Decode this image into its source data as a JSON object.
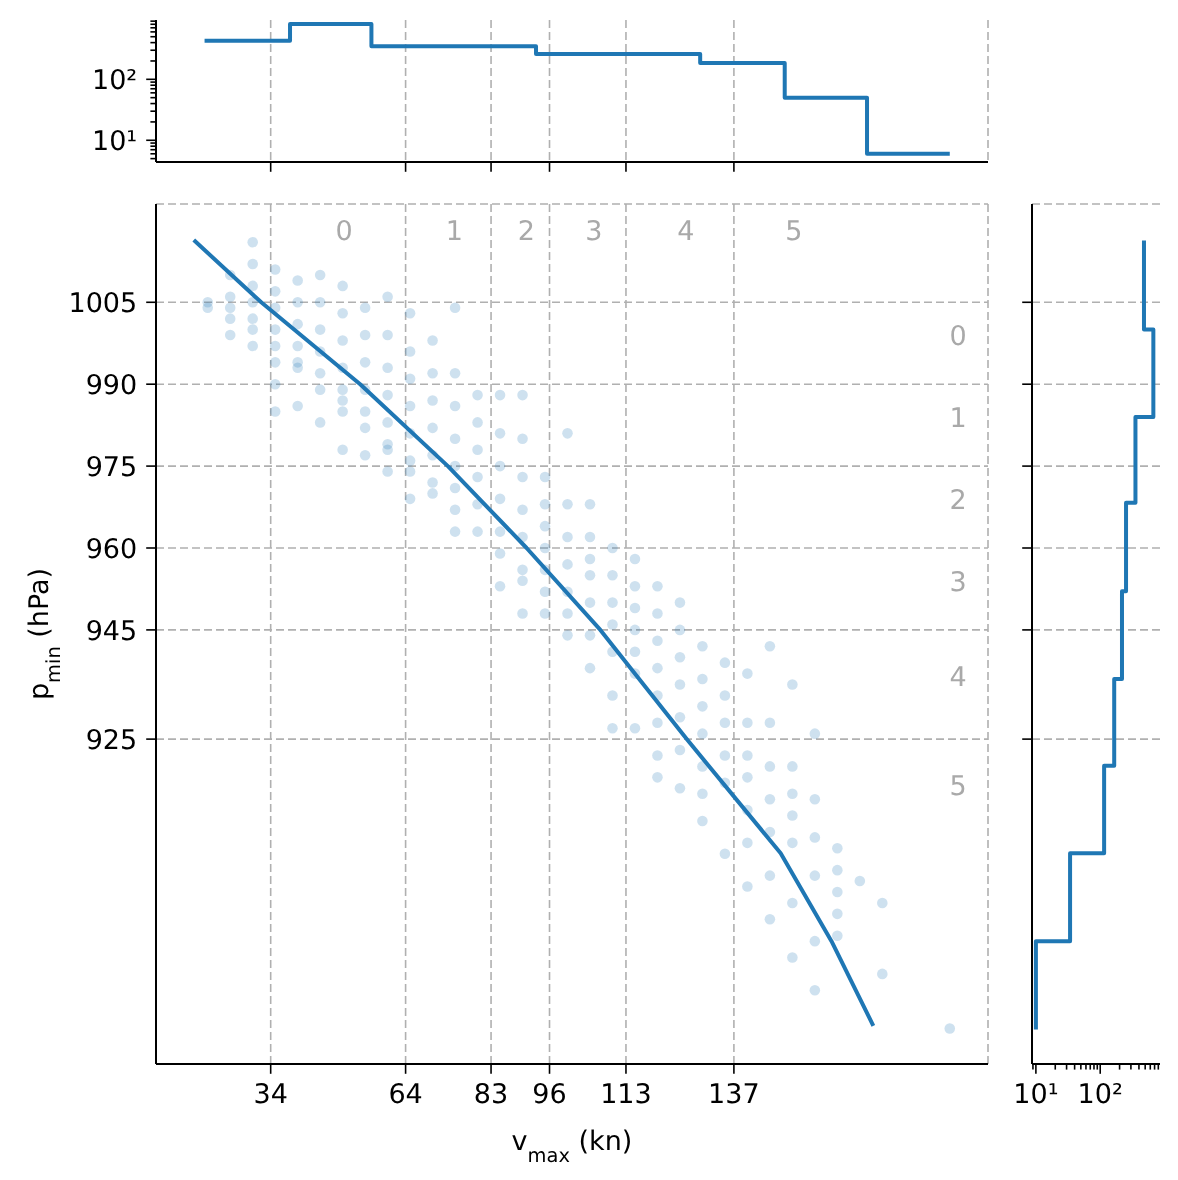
{
  "chart_data": [
    {
      "type": "histogram",
      "bins": [
        19.3,
        38.3,
        56.4,
        93,
        129.5,
        148.3,
        166.6,
        185
      ],
      "values": [
        430,
        810,
        350,
        260,
        185,
        50,
        6
      ],
      "color": "#1f77b4",
      "xlim": [
        8.5,
        193.5
      ],
      "xticks": [
        34,
        64,
        83,
        96,
        113,
        137
      ],
      "ylim": [
        4.4,
        940
      ],
      "yticks": [
        {
          "value": 5,
          "label": null
        },
        {
          "value": 6,
          "label": null
        },
        {
          "value": 7,
          "label": null
        },
        {
          "value": 8,
          "label": null
        },
        {
          "value": 9,
          "label": null
        },
        {
          "value": 10,
          "label": "10¹"
        },
        {
          "value": 20,
          "label": null
        },
        {
          "value": 30,
          "label": null
        },
        {
          "value": 40,
          "label": null
        },
        {
          "value": 50,
          "label": null
        },
        {
          "value": 60,
          "label": null
        },
        {
          "value": 70,
          "label": null
        },
        {
          "value": 80,
          "label": null
        },
        {
          "value": 90,
          "label": null
        },
        {
          "value": 100,
          "label": "10²"
        },
        {
          "value": 200,
          "label": null
        },
        {
          "value": 300,
          "label": null
        },
        {
          "value": 400,
          "label": null
        },
        {
          "value": 500,
          "label": null
        },
        {
          "value": 600,
          "label": null
        },
        {
          "value": 700,
          "label": null
        },
        {
          "value": 800,
          "label": null
        },
        {
          "value": 900,
          "label": null
        }
      ],
      "log": "y",
      "grid": "x",
      "tick_labels": "y"
    },
    {
      "type": "scatter",
      "xlabel": "v$_{max}$ (kn)",
      "ylabel": "p$_{min}$ (hPa)",
      "xlim": [
        8.5,
        193.5
      ],
      "xticks": [
        34,
        64,
        83,
        96,
        113,
        137
      ],
      "ylim": [
        865.5,
        1023
      ],
      "yticks": [
        1005,
        990,
        975,
        960,
        945,
        925
      ],
      "grid": true,
      "series": [
        {
          "type": "scatter",
          "color": "#1f77b4",
          "marker": "circle",
          "x": [
            20,
            20,
            25,
            25,
            25,
            25,
            25,
            30,
            30,
            30,
            30,
            30,
            30,
            30,
            35,
            35,
            35,
            35,
            35,
            35,
            35,
            35,
            40,
            40,
            40,
            40,
            40,
            40,
            40,
            45,
            45,
            45,
            45,
            45,
            45,
            45,
            50,
            50,
            50,
            50,
            50,
            50,
            50,
            50,
            55,
            55,
            55,
            55,
            55,
            55,
            55,
            60,
            60,
            60,
            60,
            60,
            60,
            60,
            60,
            65,
            65,
            65,
            65,
            65,
            65,
            65,
            65,
            70,
            70,
            70,
            70,
            70,
            70,
            70,
            75,
            75,
            75,
            75,
            75,
            75,
            75,
            75,
            80,
            80,
            80,
            80,
            80,
            80,
            85,
            85,
            85,
            85,
            85,
            85,
            85,
            90,
            90,
            90,
            90,
            90,
            90,
            90,
            90,
            95,
            95,
            95,
            95,
            95,
            95,
            95,
            100,
            100,
            100,
            100,
            100,
            100,
            100,
            105,
            105,
            105,
            105,
            105,
            105,
            105,
            110,
            110,
            110,
            110,
            110,
            110,
            110,
            115,
            115,
            115,
            115,
            115,
            115,
            115,
            120,
            120,
            120,
            120,
            120,
            120,
            120,
            120,
            125,
            125,
            125,
            125,
            125,
            125,
            125,
            130,
            130,
            130,
            130,
            130,
            130,
            130,
            135,
            135,
            135,
            135,
            135,
            135,
            140,
            140,
            140,
            140,
            140,
            140,
            140,
            145,
            145,
            145,
            145,
            145,
            145,
            145,
            150,
            150,
            150,
            150,
            150,
            150,
            150,
            155,
            155,
            155,
            155,
            155,
            155,
            160,
            160,
            160,
            160,
            160,
            165,
            170,
            170,
            185
          ],
          "values": [
            1005,
            1004,
            1010,
            1006,
            1004,
            1002,
            999,
            1016,
            1012,
            1008,
            1005,
            1002,
            1000,
            997,
            1011,
            1007,
            1004,
            1000,
            997,
            994,
            990,
            985,
            1009,
            1005,
            1001,
            997,
            994,
            993,
            986,
            1010,
            1005,
            1000,
            996,
            992,
            989,
            983,
            1008,
            1003,
            998,
            993,
            989,
            987,
            985,
            978,
            1004,
            999,
            994,
            989,
            985,
            982,
            977,
            1006,
            999,
            993,
            988,
            983,
            979,
            978,
            974,
            1003,
            996,
            991,
            986,
            981,
            976,
            974,
            969,
            998,
            992,
            987,
            982,
            977,
            972,
            970,
            1004,
            992,
            986,
            980,
            975,
            971,
            967,
            963,
            988,
            983,
            978,
            973,
            968,
            963,
            988,
            981,
            975,
            969,
            963,
            959,
            953,
            988,
            980,
            973,
            967,
            962,
            956,
            954,
            948,
            973,
            968,
            964,
            960,
            956,
            952,
            948,
            981,
            968,
            962,
            957,
            952,
            948,
            944,
            968,
            962,
            958,
            955,
            950,
            944,
            938,
            960,
            955,
            950,
            946,
            941,
            933,
            927,
            958,
            953,
            949,
            945,
            941,
            937,
            927,
            953,
            948,
            943,
            938,
            933,
            928,
            922,
            918,
            950,
            945,
            940,
            935,
            929,
            923,
            916,
            942,
            936,
            931,
            926,
            920,
            915,
            910,
            939,
            933,
            928,
            922,
            917,
            904,
            937,
            928,
            922,
            918,
            912,
            906,
            898,
            942,
            928,
            920,
            914,
            908,
            900,
            892,
            935,
            920,
            915,
            911,
            906,
            895,
            885,
            926,
            914,
            907,
            900,
            888,
            879,
            905,
            901,
            897,
            893,
            889,
            899,
            895,
            882,
            872
          ]
        },
        {
          "type": "line",
          "color": "#1f77b4",
          "x": [
            16.9,
            31.9,
            53.9,
            73.4,
            90.9,
            107.3,
            126.5,
            147.4,
            158.7,
            168
          ],
          "values": [
            1016.4,
            1005,
            990,
            975,
            960,
            945,
            925,
            904.1,
            888,
            872.5
          ]
        }
      ],
      "annotations": [
        "0",
        "1",
        "2",
        "3",
        "4",
        "5",
        "0",
        "1",
        "2",
        "3",
        "4",
        "5"
      ]
    },
    {
      "type": "histogram",
      "orientation": "horizontal",
      "bins": [
        871.8,
        888,
        904.1,
        920.1,
        936,
        952.1,
        968.3,
        984,
        1000,
        1016.3
      ],
      "values": [
        10,
        34,
        115,
        165,
        218,
        252,
        353,
        670,
        479
      ],
      "color": "#1f77b4",
      "xlim": [
        8.7,
        850
      ],
      "xticks": [
        {
          "value": 9,
          "label": null
        },
        {
          "value": 10,
          "label": "10¹"
        },
        {
          "value": 20,
          "label": null
        },
        {
          "value": 30,
          "label": null
        },
        {
          "value": 40,
          "label": null
        },
        {
          "value": 50,
          "label": null
        },
        {
          "value": 60,
          "label": null
        },
        {
          "value": 70,
          "label": null
        },
        {
          "value": 80,
          "label": null
        },
        {
          "value": 90,
          "label": null
        },
        {
          "value": 100,
          "label": "10²"
        },
        {
          "value": 200,
          "label": null
        },
        {
          "value": 300,
          "label": null
        },
        {
          "value": 400,
          "label": null
        },
        {
          "value": 500,
          "label": null
        },
        {
          "value": 600,
          "label": null
        },
        {
          "value": 700,
          "label": null
        },
        {
          "value": 800,
          "label": null
        }
      ],
      "ylim": [
        865.5,
        1023
      ],
      "yticks": [
        1005,
        990,
        975,
        960,
        945,
        925
      ],
      "log": "x",
      "grid": "y",
      "tick_labels": "x"
    }
  ]
}
